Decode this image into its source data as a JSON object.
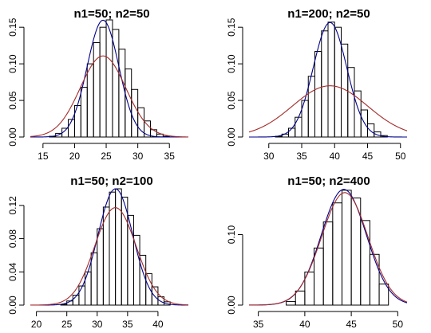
{
  "chart_data": [
    {
      "type": "histogram",
      "title": "n1=50; n2=50",
      "xlim": [
        13,
        38
      ],
      "ylim": [
        0,
        0.16
      ],
      "x_ticks": [
        15,
        20,
        25,
        30,
        35
      ],
      "y_ticks": [
        0.0,
        0.05,
        0.1,
        0.15
      ],
      "y_tick_labels": [
        "0.00",
        "0.05",
        "0.10",
        "0.15"
      ],
      "bins": {
        "edges": [
          16,
          17,
          18,
          19,
          20,
          21,
          22,
          23,
          24,
          25,
          26,
          27,
          28,
          29,
          30,
          31,
          32,
          33,
          34,
          35
        ],
        "density": [
          0.001,
          0.005,
          0.012,
          0.024,
          0.043,
          0.068,
          0.1,
          0.129,
          0.15,
          0.16,
          0.147,
          0.12,
          0.093,
          0.065,
          0.04,
          0.022,
          0.01,
          0.004,
          0.001
        ]
      },
      "curves": [
        {
          "color": "#00008b",
          "mean": 24.5,
          "sd": 2.5
        },
        {
          "color": "#a52a2a",
          "mean": 24.5,
          "sd": 3.6
        }
      ],
      "grid": false,
      "legend": "none"
    },
    {
      "type": "histogram",
      "title": "n1=200; n2=50",
      "xlim": [
        27,
        51
      ],
      "ylim": [
        0,
        0.16
      ],
      "x_ticks": [
        30,
        35,
        40,
        45,
        50
      ],
      "y_ticks": [
        0.0,
        0.05,
        0.1,
        0.15
      ],
      "y_tick_labels": [
        "0.00",
        "0.05",
        "0.10",
        "0.15"
      ],
      "bins": {
        "edges": [
          31,
          32,
          33,
          34,
          35,
          36,
          37,
          38,
          39,
          40,
          41,
          42,
          43,
          44,
          45,
          46,
          47,
          48
        ],
        "density": [
          0.001,
          0.004,
          0.012,
          0.027,
          0.05,
          0.083,
          0.117,
          0.145,
          0.157,
          0.15,
          0.127,
          0.095,
          0.063,
          0.037,
          0.018,
          0.007,
          0.002
        ]
      },
      "curves": [
        {
          "color": "#00008b",
          "mean": 39.3,
          "sd": 2.55
        },
        {
          "color": "#a52a2a",
          "mean": 39.3,
          "sd": 5.7
        }
      ],
      "grid": false,
      "legend": "none"
    },
    {
      "type": "histogram",
      "title": "n1=50; n2=100",
      "xlim": [
        19,
        45
      ],
      "ylim": [
        0,
        0.14
      ],
      "x_ticks": [
        20,
        25,
        30,
        35,
        40
      ],
      "y_ticks": [
        0.0,
        0.04,
        0.08,
        0.12
      ],
      "y_tick_labels": [
        "0.00",
        "0.04",
        "0.08",
        "0.12"
      ],
      "bins": {
        "edges": [
          24,
          25,
          26,
          27,
          28,
          29,
          30,
          31,
          32,
          33,
          34,
          35,
          36,
          37,
          38,
          39,
          40,
          41,
          42
        ],
        "density": [
          0.001,
          0.005,
          0.012,
          0.023,
          0.04,
          0.063,
          0.092,
          0.118,
          0.136,
          0.14,
          0.13,
          0.108,
          0.084,
          0.06,
          0.038,
          0.022,
          0.01,
          0.004
        ]
      },
      "curves": [
        {
          "color": "#00008b",
          "mean": 33.0,
          "sd": 2.85
        },
        {
          "color": "#a52a2a",
          "mean": 33.0,
          "sd": 3.4
        }
      ],
      "grid": false,
      "legend": "none"
    },
    {
      "type": "histogram",
      "title": "n1=50; n2=400",
      "xlim": [
        34,
        51
      ],
      "ylim": [
        0,
        0.165
      ],
      "x_ticks": [
        35,
        40,
        45,
        50
      ],
      "y_ticks": [
        0.0,
        0.1
      ],
      "y_tick_labels": [
        "0.00",
        "0.10"
      ],
      "bins": {
        "edges": [
          38,
          39,
          40,
          41,
          42,
          43,
          44,
          45,
          46,
          47,
          48,
          49
        ],
        "density": [
          0.005,
          0.02,
          0.047,
          0.081,
          0.118,
          0.145,
          0.163,
          0.152,
          0.12,
          0.072,
          0.03
        ]
      },
      "curves": [
        {
          "color": "#00008b",
          "mean": 44.2,
          "sd": 2.43
        },
        {
          "color": "#a52a2a",
          "mean": 44.3,
          "sd": 2.5
        }
      ],
      "grid": false,
      "legend": "none"
    }
  ]
}
